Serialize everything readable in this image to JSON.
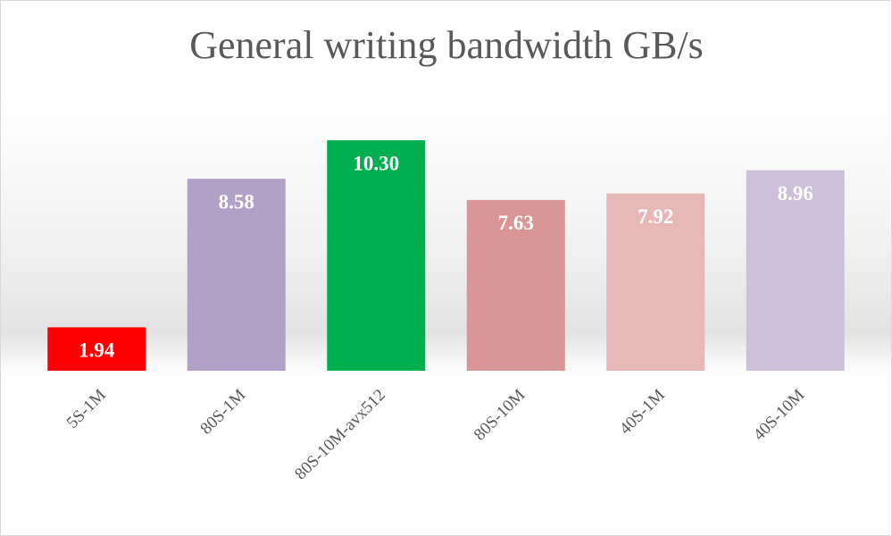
{
  "chart_data": {
    "type": "bar",
    "title": "General writing bandwidth GB/s",
    "categories": [
      "5S-1M",
      "80S-1M",
      "80S-10M-avx512",
      "80S-10M",
      "40S-1M",
      "40S-10M"
    ],
    "values": [
      1.94,
      8.58,
      10.3,
      7.63,
      7.92,
      8.96
    ],
    "value_labels": [
      "1.94",
      "8.58",
      "10.30",
      "7.63",
      "7.92",
      "8.96"
    ],
    "colors": [
      "#ff0000",
      "#b1a0c7",
      "#00b050",
      "#da9694",
      "#e6b8b7",
      "#ccc0da"
    ]
  }
}
